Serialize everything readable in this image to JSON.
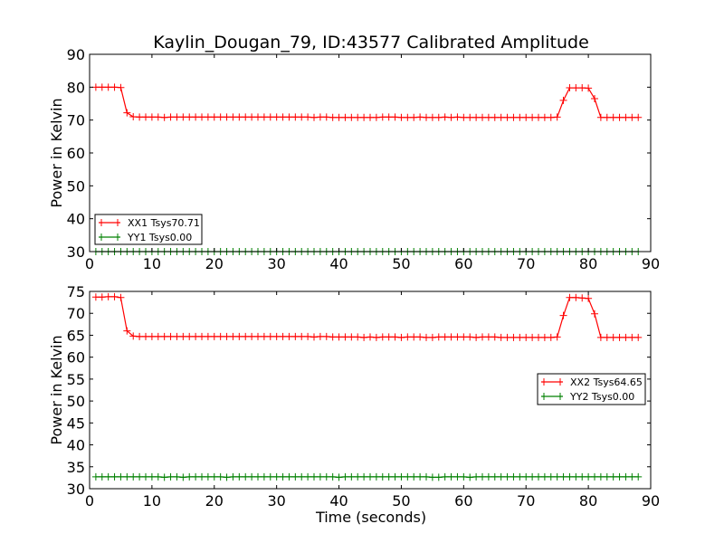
{
  "chart_data": [
    {
      "type": "line",
      "title": "Kaylin_Dougan_79, ID:43577 Calibrated Amplitude",
      "xlabel": "",
      "ylabel": "Power in Kelvin",
      "xlim": [
        0,
        90
      ],
      "ylim": [
        30,
        90
      ],
      "xticks": [
        0,
        10,
        20,
        30,
        40,
        50,
        60,
        70,
        80,
        90
      ],
      "yticks": [
        30,
        40,
        50,
        60,
        70,
        80,
        90
      ],
      "grid": false,
      "legend_position": "lower-left",
      "x": [
        1,
        2,
        3,
        4,
        5,
        6,
        7,
        8,
        9,
        10,
        11,
        12,
        13,
        14,
        15,
        16,
        17,
        18,
        19,
        20,
        21,
        22,
        23,
        24,
        25,
        26,
        27,
        28,
        29,
        30,
        31,
        32,
        33,
        34,
        35,
        36,
        37,
        38,
        39,
        40,
        41,
        42,
        43,
        44,
        45,
        46,
        47,
        48,
        49,
        50,
        51,
        52,
        53,
        54,
        55,
        56,
        57,
        58,
        59,
        60,
        61,
        62,
        63,
        64,
        65,
        66,
        67,
        68,
        69,
        70,
        71,
        72,
        73,
        74,
        75,
        76,
        77,
        78,
        79,
        80,
        81,
        82,
        83,
        84,
        85,
        86,
        87,
        88
      ],
      "series": [
        {
          "name": "XX1 Tsys70.71",
          "color": "#ff0000",
          "values": [
            80,
            80,
            80,
            80,
            79.9,
            72.2,
            71,
            70.9,
            70.9,
            70.9,
            70.9,
            70.8,
            70.9,
            70.9,
            70.9,
            70.9,
            70.9,
            70.9,
            70.9,
            70.9,
            70.9,
            70.9,
            70.9,
            70.9,
            70.9,
            70.9,
            70.9,
            70.9,
            70.9,
            70.9,
            70.9,
            70.9,
            70.9,
            70.9,
            70.9,
            70.8,
            70.9,
            70.9,
            70.8,
            70.8,
            70.8,
            70.8,
            70.8,
            70.8,
            70.8,
            70.8,
            70.9,
            70.9,
            70.9,
            70.8,
            70.8,
            70.8,
            70.9,
            70.8,
            70.8,
            70.8,
            70.9,
            70.8,
            70.9,
            70.8,
            70.8,
            70.8,
            70.8,
            70.8,
            70.8,
            70.8,
            70.8,
            70.8,
            70.8,
            70.8,
            70.8,
            70.8,
            70.8,
            70.8,
            70.9,
            76,
            79.8,
            79.8,
            79.8,
            79.7,
            76.5,
            70.8,
            70.8,
            70.8,
            70.8,
            70.8,
            70.8,
            70.8
          ]
        },
        {
          "name": "YY1 Tsys0.00",
          "color": "#008000",
          "values": [
            30,
            30,
            30,
            30,
            30,
            30,
            30,
            30,
            30,
            30,
            30,
            30,
            30,
            30,
            30,
            30,
            30,
            30,
            30,
            30,
            30,
            30,
            30,
            30,
            30,
            30,
            30,
            30,
            30,
            30,
            30,
            30,
            30,
            30,
            30,
            30,
            30,
            30,
            30,
            30,
            30,
            30,
            30,
            30,
            30,
            30,
            30,
            30,
            30,
            30,
            30,
            30,
            30,
            30,
            30,
            30,
            30,
            30,
            30,
            30,
            30,
            30,
            30,
            30,
            30,
            30,
            30,
            30,
            30,
            30,
            30,
            30,
            30,
            30,
            30,
            30,
            30,
            30,
            30,
            30,
            30,
            30,
            30,
            30,
            30,
            30,
            30,
            30
          ]
        }
      ]
    },
    {
      "type": "line",
      "title": "",
      "xlabel": "Time (seconds)",
      "ylabel": "Power in Kelvin",
      "xlim": [
        0,
        90
      ],
      "ylim": [
        30,
        75
      ],
      "xticks": [
        0,
        10,
        20,
        30,
        40,
        50,
        60,
        70,
        80,
        90
      ],
      "yticks": [
        30,
        35,
        40,
        45,
        50,
        55,
        60,
        65,
        70,
        75
      ],
      "grid": false,
      "legend_position": "center-right",
      "x": [
        1,
        2,
        3,
        4,
        5,
        6,
        7,
        8,
        9,
        10,
        11,
        12,
        13,
        14,
        15,
        16,
        17,
        18,
        19,
        20,
        21,
        22,
        23,
        24,
        25,
        26,
        27,
        28,
        29,
        30,
        31,
        32,
        33,
        34,
        35,
        36,
        37,
        38,
        39,
        40,
        41,
        42,
        43,
        44,
        45,
        46,
        47,
        48,
        49,
        50,
        51,
        52,
        53,
        54,
        55,
        56,
        57,
        58,
        59,
        60,
        61,
        62,
        63,
        64,
        65,
        66,
        67,
        68,
        69,
        70,
        71,
        72,
        73,
        74,
        75,
        76,
        77,
        78,
        79,
        80,
        81,
        82,
        83,
        84,
        85,
        86,
        87,
        88
      ],
      "series": [
        {
          "name": "XX2 Tsys64.65",
          "color": "#ff0000",
          "values": [
            73.7,
            73.7,
            73.8,
            73.8,
            73.6,
            66,
            64.8,
            64.7,
            64.7,
            64.7,
            64.7,
            64.7,
            64.7,
            64.7,
            64.7,
            64.7,
            64.7,
            64.7,
            64.7,
            64.7,
            64.7,
            64.7,
            64.7,
            64.7,
            64.7,
            64.7,
            64.7,
            64.7,
            64.7,
            64.7,
            64.7,
            64.7,
            64.7,
            64.7,
            64.7,
            64.6,
            64.7,
            64.7,
            64.6,
            64.6,
            64.6,
            64.6,
            64.6,
            64.5,
            64.6,
            64.5,
            64.6,
            64.6,
            64.6,
            64.5,
            64.6,
            64.6,
            64.6,
            64.5,
            64.5,
            64.6,
            64.6,
            64.6,
            64.6,
            64.6,
            64.6,
            64.5,
            64.6,
            64.6,
            64.6,
            64.5,
            64.5,
            64.5,
            64.5,
            64.5,
            64.5,
            64.5,
            64.5,
            64.5,
            64.6,
            69.5,
            73.6,
            73.6,
            73.5,
            73.4,
            69.9,
            64.5,
            64.5,
            64.5,
            64.5,
            64.5,
            64.5,
            64.5
          ]
        },
        {
          "name": "YY2 Tsys0.00",
          "color": "#008000",
          "values": [
            32.7,
            32.7,
            32.7,
            32.7,
            32.7,
            32.7,
            32.7,
            32.7,
            32.7,
            32.7,
            32.7,
            32.6,
            32.7,
            32.7,
            32.6,
            32.7,
            32.7,
            32.7,
            32.7,
            32.7,
            32.7,
            32.6,
            32.7,
            32.7,
            32.7,
            32.7,
            32.7,
            32.7,
            32.7,
            32.7,
            32.7,
            32.7,
            32.7,
            32.7,
            32.7,
            32.7,
            32.7,
            32.7,
            32.7,
            32.6,
            32.7,
            32.7,
            32.7,
            32.7,
            32.7,
            32.7,
            32.7,
            32.7,
            32.7,
            32.7,
            32.7,
            32.7,
            32.7,
            32.7,
            32.6,
            32.6,
            32.7,
            32.7,
            32.7,
            32.7,
            32.6,
            32.7,
            32.7,
            32.7,
            32.7,
            32.7,
            32.7,
            32.7,
            32.7,
            32.7,
            32.7,
            32.7,
            32.7,
            32.7,
            32.7,
            32.7,
            32.7,
            32.7,
            32.7,
            32.7,
            32.7,
            32.7,
            32.7,
            32.7,
            32.7,
            32.7,
            32.7,
            32.7
          ]
        }
      ]
    }
  ]
}
